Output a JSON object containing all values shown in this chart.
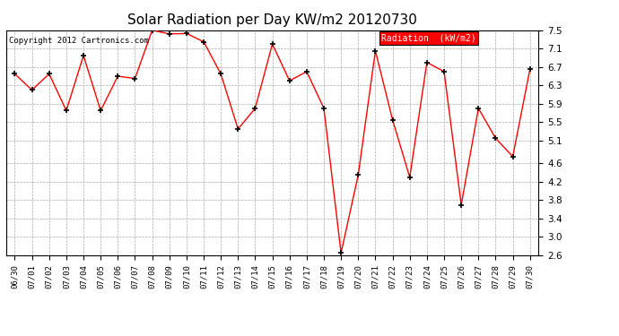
{
  "title": "Solar Radiation per Day KW/m2 20120730",
  "copyright": "Copyright 2012 Cartronics.com",
  "legend_label": "Radiation  (kW/m2)",
  "dates": [
    "06/30",
    "07/01",
    "07/02",
    "07/03",
    "07/04",
    "07/05",
    "07/06",
    "07/07",
    "07/08",
    "07/09",
    "07/10",
    "07/11",
    "07/12",
    "07/13",
    "07/14",
    "07/15",
    "07/16",
    "07/17",
    "07/18",
    "07/19",
    "07/20",
    "07/21",
    "07/22",
    "07/23",
    "07/24",
    "07/25",
    "07/26",
    "07/27",
    "07/28",
    "07/29",
    "07/30"
  ],
  "values": [
    6.55,
    6.2,
    6.55,
    5.75,
    6.95,
    5.75,
    6.5,
    6.45,
    7.5,
    7.42,
    7.43,
    7.25,
    6.55,
    5.35,
    5.8,
    7.2,
    6.4,
    6.6,
    5.8,
    2.65,
    4.35,
    7.05,
    5.55,
    4.3,
    6.8,
    6.6,
    3.7,
    5.8,
    5.15,
    4.75,
    6.65
  ],
  "ylim": [
    2.6,
    7.5
  ],
  "yticks": [
    2.6,
    3.0,
    3.4,
    3.8,
    4.2,
    4.6,
    5.1,
    5.5,
    5.9,
    6.3,
    6.7,
    7.1,
    7.5
  ],
  "line_color": "red",
  "marker_color": "black",
  "bg_color": "#ffffff",
  "plot_bg_color": "#ffffff",
  "grid_color": "#aaaaaa",
  "title_fontsize": 11,
  "legend_bg": "red",
  "legend_fg": "white"
}
